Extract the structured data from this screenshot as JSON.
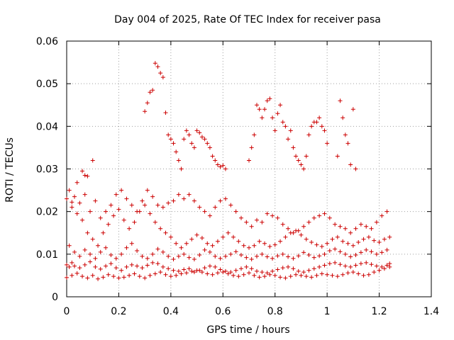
{
  "chart_data": {
    "type": "scatter",
    "title": "Day 004 of 2025, Rate Of TEC Index for receiver pasa",
    "xlabel": "GPS time / hours",
    "ylabel": "ROTI / TECUs",
    "xlim": [
      0,
      1.4
    ],
    "ylim": [
      0,
      0.06
    ],
    "xticks": [
      "0",
      "0.2",
      "0.4",
      "0.6",
      "0.8",
      "1",
      "1.2",
      "1.4"
    ],
    "yticks": [
      "0",
      "0.01",
      "0.02",
      "0.03",
      "0.04",
      "0.05",
      "0.06"
    ],
    "grid": true,
    "marker": "plus",
    "color": "#cc0000",
    "series": [
      {
        "x": [
          0.0,
          0.01,
          0.02,
          0.03,
          0.05,
          0.07,
          0.09,
          0.11,
          0.13,
          0.15,
          0.17,
          0.19,
          0.21,
          0.23,
          0.25,
          0.27,
          0.29,
          0.31,
          0.33,
          0.35,
          0.37,
          0.39,
          0.41,
          0.43,
          0.45,
          0.47,
          0.49,
          0.51,
          0.53,
          0.55,
          0.57,
          0.59,
          0.61,
          0.63,
          0.65,
          0.67,
          0.69,
          0.71,
          0.73,
          0.75,
          0.77,
          0.79,
          0.81,
          0.83,
          0.85,
          0.87,
          0.89,
          0.91,
          0.93,
          0.95,
          0.97,
          0.99,
          1.01,
          1.03,
          1.05,
          1.07,
          1.09,
          1.11,
          1.13,
          1.15,
          1.17,
          1.19,
          1.21,
          1.23,
          1.24,
          0.0,
          0.02,
          0.04,
          0.06,
          0.08,
          0.1,
          0.12,
          0.14,
          0.16,
          0.18,
          0.2,
          0.22,
          0.24,
          0.26,
          0.28,
          0.3,
          0.32,
          0.34,
          0.36,
          0.38,
          0.4,
          0.42,
          0.44,
          0.46,
          0.48,
          0.5,
          0.52,
          0.54,
          0.56,
          0.58,
          0.6,
          0.62,
          0.64,
          0.66,
          0.68,
          0.7,
          0.72,
          0.74,
          0.76,
          0.78,
          0.8,
          0.82,
          0.84,
          0.86,
          0.88,
          0.9,
          0.92,
          0.94,
          0.96,
          0.98,
          1.0,
          1.02,
          1.04,
          1.06,
          1.08,
          1.1,
          1.12,
          1.14,
          1.16,
          1.18,
          1.2,
          1.22,
          1.24,
          0.01,
          0.03,
          0.05,
          0.07,
          0.09,
          0.11,
          0.13,
          0.15,
          0.17,
          0.19,
          0.21,
          0.23,
          0.25,
          0.27,
          0.29,
          0.31,
          0.33,
          0.35,
          0.37,
          0.39,
          0.41,
          0.43,
          0.45,
          0.47,
          0.49,
          0.51,
          0.53,
          0.55,
          0.57,
          0.59,
          0.61,
          0.63,
          0.65,
          0.67,
          0.69,
          0.71,
          0.73,
          0.75,
          0.77,
          0.79,
          0.81,
          0.83,
          0.85,
          0.87,
          0.89,
          0.91,
          0.93,
          0.95,
          0.97,
          0.99,
          1.01,
          1.03,
          1.05,
          1.07,
          1.09,
          1.11,
          1.13,
          1.15,
          1.17,
          1.19,
          1.21,
          1.23,
          0.0,
          0.02,
          0.04,
          0.06,
          0.08,
          0.1,
          0.12,
          0.14,
          0.16,
          0.18,
          0.2,
          0.22,
          0.24,
          0.26,
          0.28,
          0.3,
          0.32,
          0.34,
          0.36,
          0.38,
          0.4,
          0.42,
          0.44,
          0.46,
          0.48,
          0.5,
          0.52,
          0.54,
          0.56,
          0.58,
          0.6,
          0.62,
          0.64,
          0.66,
          0.68,
          0.7,
          0.72,
          0.74,
          0.76,
          0.78,
          0.8,
          0.82,
          0.84,
          0.86,
          0.88,
          0.9,
          0.92,
          0.94,
          0.96,
          0.98,
          1.0,
          1.02,
          1.04,
          1.06,
          1.08,
          1.1,
          1.12,
          1.14,
          1.16,
          1.18,
          1.2,
          1.22,
          1.24,
          0.01,
          0.03,
          0.05,
          0.07,
          0.09,
          0.11,
          0.13,
          0.15,
          0.17,
          0.19,
          0.21,
          0.23,
          0.25,
          0.27,
          0.29,
          0.31,
          0.33,
          0.35,
          0.37,
          0.39,
          0.41,
          0.43,
          0.45,
          0.47,
          0.49,
          0.51,
          0.53,
          0.55,
          0.57,
          0.59,
          0.61,
          0.63,
          0.65,
          0.67,
          0.69,
          0.71,
          0.73,
          0.75,
          0.77,
          0.79,
          0.81,
          0.83,
          0.85,
          0.87,
          0.89,
          0.91,
          0.93,
          0.95,
          0.97,
          0.99,
          1.01,
          1.03,
          1.05,
          1.07,
          1.09,
          1.11,
          1.13,
          1.15,
          1.17,
          1.19,
          1.21,
          1.23,
          0.3,
          0.31,
          0.32,
          0.33,
          0.34,
          0.35,
          0.36,
          0.37,
          0.38,
          0.39,
          0.4,
          0.41,
          0.42,
          0.43,
          0.44,
          0.45,
          0.46,
          0.47,
          0.48,
          0.49,
          0.5,
          0.51,
          0.52,
          0.53,
          0.54,
          0.55,
          0.56,
          0.57,
          0.58,
          0.59,
          0.6,
          0.61,
          0.7,
          0.71,
          0.72,
          0.73,
          0.74,
          0.75,
          0.76,
          0.77,
          0.78,
          0.79,
          0.8,
          0.81,
          0.82,
          0.83,
          0.84,
          0.85,
          0.86,
          0.87,
          0.88,
          0.89,
          0.9,
          0.91,
          0.92,
          0.93,
          0.94,
          0.95,
          0.96,
          0.97,
          0.98,
          0.99,
          1.0,
          1.04,
          1.05,
          1.06,
          1.07,
          1.08,
          1.09,
          1.1,
          1.11,
          0.1,
          0.08,
          0.07,
          0.06,
          0.04,
          0.02
        ],
        "y": [
          0.0075,
          0.007,
          0.008,
          0.0072,
          0.0068,
          0.0075,
          0.0082,
          0.007,
          0.0065,
          0.0072,
          0.0078,
          0.0068,
          0.0062,
          0.007,
          0.0075,
          0.0072,
          0.0068,
          0.0074,
          0.008,
          0.0078,
          0.007,
          0.0066,
          0.0062,
          0.006,
          0.0064,
          0.0066,
          0.0058,
          0.0062,
          0.0068,
          0.0072,
          0.007,
          0.0064,
          0.006,
          0.0058,
          0.0062,
          0.0066,
          0.007,
          0.0066,
          0.006,
          0.0058,
          0.0056,
          0.006,
          0.0064,
          0.0068,
          0.007,
          0.0066,
          0.006,
          0.0058,
          0.0062,
          0.0066,
          0.007,
          0.0074,
          0.0078,
          0.008,
          0.0076,
          0.0072,
          0.007,
          0.0074,
          0.0078,
          0.008,
          0.0076,
          0.0072,
          0.007,
          0.0074,
          0.0078,
          0.0045,
          0.005,
          0.0055,
          0.0048,
          0.0044,
          0.005,
          0.0042,
          0.0046,
          0.0052,
          0.0048,
          0.0044,
          0.0046,
          0.005,
          0.0054,
          0.0048,
          0.0044,
          0.005,
          0.0054,
          0.0058,
          0.0052,
          0.0048,
          0.005,
          0.0054,
          0.0056,
          0.006,
          0.0062,
          0.0058,
          0.0054,
          0.0052,
          0.0056,
          0.0058,
          0.0054,
          0.005,
          0.0048,
          0.0052,
          0.0056,
          0.005,
          0.0046,
          0.0048,
          0.0052,
          0.005,
          0.0046,
          0.0044,
          0.0048,
          0.0052,
          0.005,
          0.0048,
          0.0046,
          0.005,
          0.0054,
          0.0052,
          0.005,
          0.0048,
          0.0052,
          0.0056,
          0.0058,
          0.0054,
          0.005,
          0.0052,
          0.0058,
          0.0062,
          0.0066,
          0.007,
          0.012,
          0.0105,
          0.0095,
          0.011,
          0.01,
          0.009,
          0.0105,
          0.0115,
          0.0098,
          0.009,
          0.01,
          0.0115,
          0.0125,
          0.0108,
          0.0095,
          0.009,
          0.01,
          0.0112,
          0.0105,
          0.0095,
          0.0088,
          0.0095,
          0.01,
          0.0092,
          0.0088,
          0.0098,
          0.011,
          0.0105,
          0.0095,
          0.009,
          0.0095,
          0.01,
          0.0106,
          0.0098,
          0.0092,
          0.0088,
          0.0095,
          0.01,
          0.0094,
          0.009,
          0.0096,
          0.01,
          0.0094,
          0.009,
          0.0096,
          0.0104,
          0.0098,
          0.0092,
          0.0096,
          0.01,
          0.0108,
          0.0112,
          0.0106,
          0.01,
          0.0094,
          0.0098,
          0.0104,
          0.011,
          0.0106,
          0.01,
          0.0104,
          0.011,
          0.023,
          0.021,
          0.0195,
          0.018,
          0.015,
          0.0135,
          0.012,
          0.015,
          0.017,
          0.019,
          0.0205,
          0.018,
          0.016,
          0.0175,
          0.02,
          0.0215,
          0.0195,
          0.0175,
          0.016,
          0.015,
          0.014,
          0.0125,
          0.0115,
          0.0125,
          0.0135,
          0.0145,
          0.0138,
          0.0125,
          0.012,
          0.013,
          0.014,
          0.015,
          0.014,
          0.013,
          0.012,
          0.0115,
          0.012,
          0.013,
          0.0125,
          0.0118,
          0.0122,
          0.013,
          0.014,
          0.015,
          0.0155,
          0.0145,
          0.0135,
          0.0128,
          0.0122,
          0.0118,
          0.0125,
          0.0135,
          0.014,
          0.013,
          0.0125,
          0.012,
          0.0128,
          0.0135,
          0.014,
          0.0132,
          0.0128,
          0.0135,
          0.014,
          0.025,
          0.0235,
          0.022,
          0.024,
          0.02,
          0.0225,
          0.0185,
          0.02,
          0.0215,
          0.024,
          0.025,
          0.023,
          0.0215,
          0.02,
          0.0225,
          0.025,
          0.0235,
          0.0215,
          0.021,
          0.022,
          0.0225,
          0.024,
          0.023,
          0.024,
          0.0225,
          0.021,
          0.02,
          0.019,
          0.021,
          0.0225,
          0.023,
          0.0215,
          0.02,
          0.0185,
          0.0175,
          0.0165,
          0.018,
          0.0175,
          0.0195,
          0.019,
          0.0185,
          0.017,
          0.016,
          0.015,
          0.0155,
          0.0165,
          0.0175,
          0.0185,
          0.019,
          0.0195,
          0.0185,
          0.017,
          0.0165,
          0.016,
          0.015,
          0.016,
          0.017,
          0.0165,
          0.016,
          0.0175,
          0.019,
          0.02,
          0.0435,
          0.0455,
          0.048,
          0.0485,
          0.0548,
          0.054,
          0.0525,
          0.0515,
          0.0432,
          0.038,
          0.037,
          0.036,
          0.034,
          0.032,
          0.03,
          0.037,
          0.039,
          0.038,
          0.036,
          0.035,
          0.039,
          0.0385,
          0.0375,
          0.037,
          0.036,
          0.035,
          0.033,
          0.032,
          0.031,
          0.0305,
          0.0308,
          0.03,
          0.032,
          0.035,
          0.038,
          0.045,
          0.044,
          0.042,
          0.044,
          0.046,
          0.0465,
          0.042,
          0.039,
          0.043,
          0.045,
          0.041,
          0.04,
          0.037,
          0.039,
          0.035,
          0.033,
          0.032,
          0.031,
          0.03,
          0.033,
          0.038,
          0.04,
          0.041,
          0.041,
          0.042,
          0.04,
          0.039,
          0.036,
          0.033,
          0.046,
          0.042,
          0.038,
          0.036,
          0.031,
          0.044,
          0.03,
          0.032,
          0.0283,
          0.0285,
          0.0295,
          0.0268,
          0.0222
        ]
      }
    ]
  }
}
